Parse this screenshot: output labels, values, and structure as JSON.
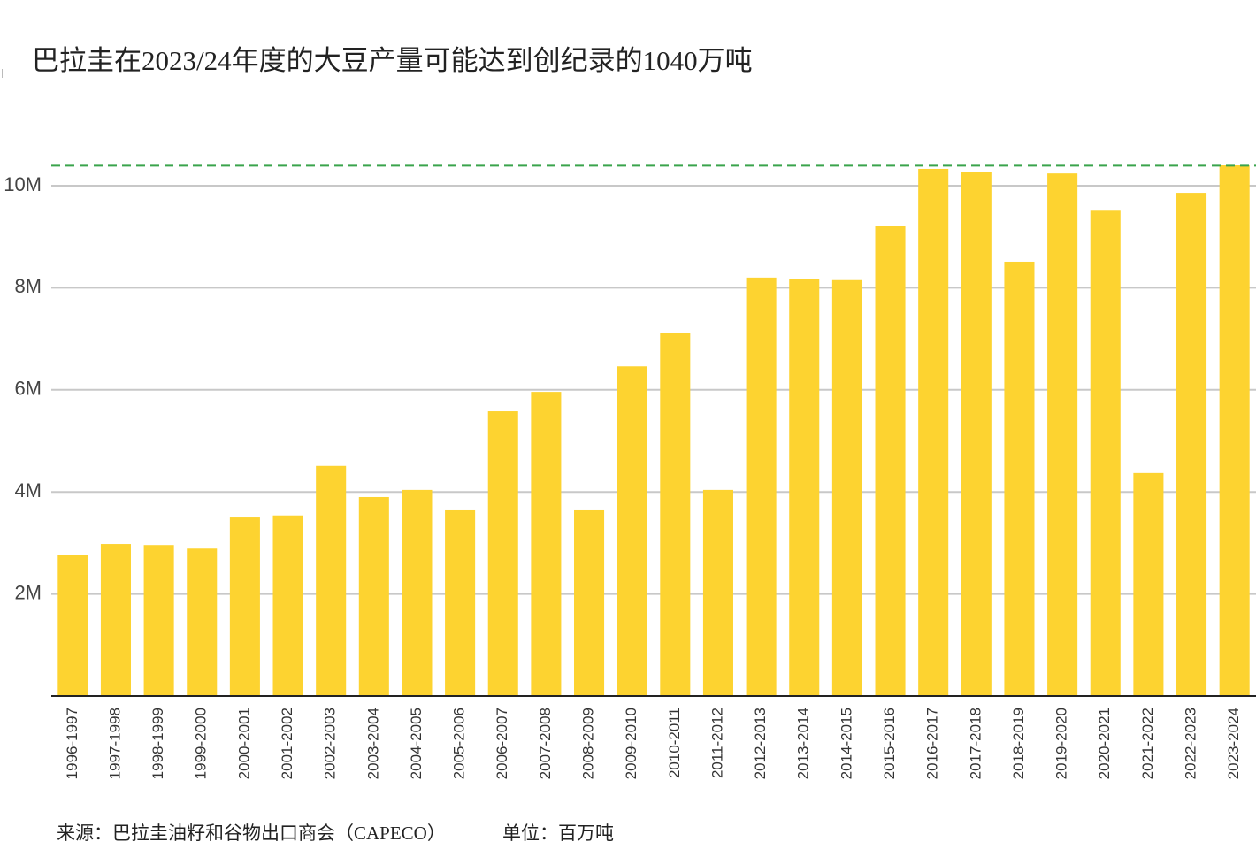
{
  "chart_data": {
    "type": "bar",
    "title": "巴拉圭在2023/24年度的大豆产量可能达到创纪录的1040万吨",
    "source": "来源：巴拉圭油籽和谷物出口商会（CAPECO）",
    "unit": "单位：百万吨",
    "categories": [
      "1996-1997",
      "1997-1998",
      "1998-1999",
      "1999-2000",
      "2000-2001",
      "2001-2002",
      "2002-2003",
      "2003-2004",
      "2004-2005",
      "2005-2006",
      "2006-2007",
      "2007-2008",
      "2008-2009",
      "2009-2010",
      "2010-2011",
      "2011-2012",
      "2012-2013",
      "2013-2014",
      "2014-2015",
      "2015-2016",
      "2016-2017",
      "2017-2018",
      "2018-2019",
      "2019-2020",
      "2020-2021",
      "2021-2022",
      "2022-2023",
      "2023-2024"
    ],
    "values": [
      2.76,
      2.98,
      2.96,
      2.89,
      3.5,
      3.54,
      4.51,
      3.9,
      4.04,
      3.64,
      5.58,
      5.96,
      3.64,
      6.46,
      7.12,
      4.04,
      8.2,
      8.18,
      8.15,
      9.22,
      10.33,
      10.26,
      8.51,
      10.24,
      9.51,
      4.37,
      9.86,
      10.4
    ],
    "color": "#fdd330",
    "ylim": [
      0,
      11
    ],
    "yticks": [
      {
        "value": 2,
        "label": "2M"
      },
      {
        "value": 4,
        "label": "4M"
      },
      {
        "value": 6,
        "label": "6M"
      },
      {
        "value": 8,
        "label": "8M"
      },
      {
        "value": 10,
        "label": "10M"
      }
    ],
    "grid": true,
    "reference_line": {
      "value": 10.4,
      "color": "#3aa44c"
    }
  }
}
